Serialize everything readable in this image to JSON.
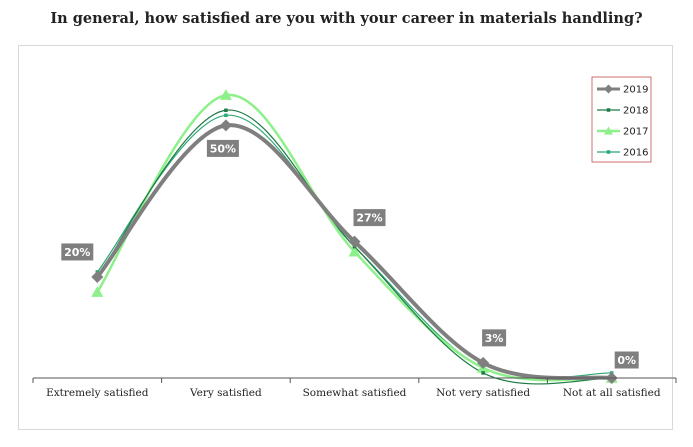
{
  "chart_data": {
    "type": "line",
    "title": "In general, how satisfied are you with your career in materials handling?",
    "categories": [
      "Extremely satisfied",
      "Very satisfied",
      "Somewhat satisfied",
      "Not very satisfied",
      "Not at all satisfied"
    ],
    "ylim": [
      0,
      58
    ],
    "grid": false,
    "legend_position": "top-right",
    "data_labels_series": "2019",
    "series": [
      {
        "name": "2019",
        "values": [
          20,
          50,
          27,
          3,
          0
        ],
        "color": "#7f7f7f",
        "marker": "diamond",
        "width": 4
      },
      {
        "name": "2018",
        "values": [
          20,
          53,
          26,
          1,
          0
        ],
        "color": "#1e7b45",
        "marker": "square",
        "width": 1.2
      },
      {
        "name": "2017",
        "values": [
          17,
          56,
          25,
          2,
          0
        ],
        "color": "#8ef08a",
        "marker": "triangle",
        "width": 2.5
      },
      {
        "name": "2016",
        "values": [
          21,
          52,
          26,
          2,
          1
        ],
        "color": "#2aa873",
        "marker": "square",
        "width": 1.2
      }
    ]
  }
}
